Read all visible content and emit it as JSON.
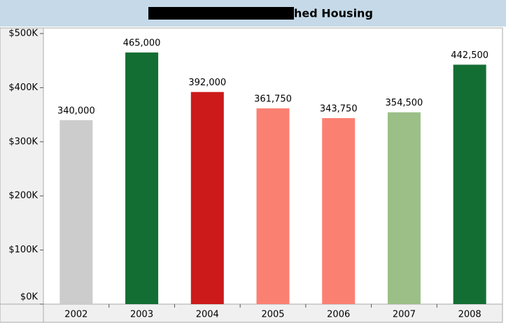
{
  "chart_data": {
    "type": "bar",
    "title": "hed Housing",
    "categories": [
      "2002",
      "2003",
      "2004",
      "2005",
      "2006",
      "2007",
      "2008"
    ],
    "values": [
      340000,
      465000,
      392000,
      361750,
      343750,
      354500,
      442500
    ],
    "value_labels": [
      "340,000",
      "465,000",
      "392,000",
      "361,750",
      "343,750",
      "354,500",
      "442,500"
    ],
    "colors": [
      "#cccccc",
      "#136e33",
      "#cc1a1a",
      "#fa8072",
      "#fa8072",
      "#9bbf87",
      "#136e33"
    ],
    "ylim": [
      0,
      500000
    ],
    "yticks": [
      {
        "value": 0,
        "label": "$0K"
      },
      {
        "value": 100000,
        "label": "$100K"
      },
      {
        "value": 200000,
        "label": "$200K"
      },
      {
        "value": 300000,
        "label": "$300K"
      },
      {
        "value": 400000,
        "label": "$400K"
      },
      {
        "value": 500000,
        "label": "$500K"
      }
    ]
  }
}
